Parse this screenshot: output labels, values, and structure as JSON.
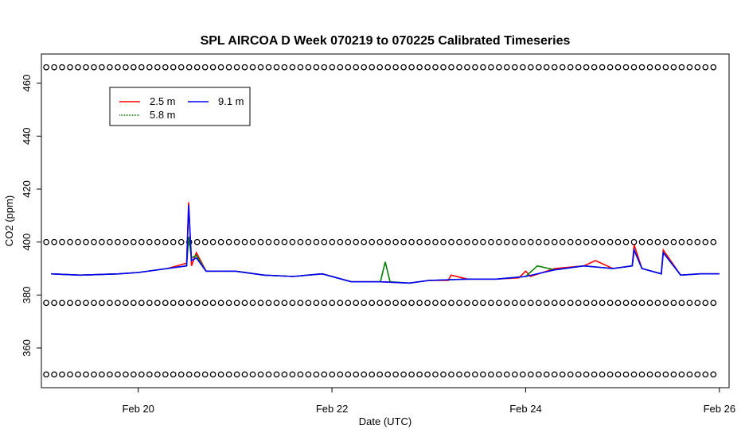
{
  "chart_data": {
    "type": "line",
    "title": "SPL AIRCOA D  Week 070219 to 070225  Calibrated Timeseries",
    "xlabel": "Date (UTC)",
    "ylabel": "CO2 (ppm)",
    "x_ticks": [
      "Feb 20",
      "Feb 22",
      "Feb 24",
      "Feb 26"
    ],
    "y_ticks": [
      360,
      380,
      400,
      420,
      440,
      460
    ],
    "xlim_days": [
      19.0,
      26.1
    ],
    "ylim": [
      345,
      471
    ],
    "grid": false,
    "legend_position": "top-left",
    "series": [
      {
        "name": "2.5 m",
        "color": "#ff0000",
        "x_day": [
          19.1,
          19.4,
          19.8,
          20.0,
          20.3,
          20.5,
          20.52,
          20.55,
          20.6,
          20.7,
          21.0,
          21.3,
          21.6,
          21.9,
          22.2,
          22.5,
          22.8,
          23.0,
          23.2,
          23.23,
          23.4,
          23.7,
          23.93,
          24.0,
          24.05,
          24.3,
          24.6,
          24.72,
          24.9,
          25.1,
          25.12,
          25.2,
          25.4,
          25.42,
          25.6,
          25.8,
          26.0
        ],
        "values": [
          388,
          387.5,
          388,
          388.5,
          390,
          392,
          415,
          391,
          396,
          389,
          389,
          387.5,
          387,
          388,
          385,
          385,
          384.5,
          385.5,
          385.5,
          387.5,
          386,
          386,
          386.5,
          389,
          387,
          390,
          391,
          393,
          390,
          391,
          399,
          390,
          388,
          397,
          387.5,
          388,
          388
        ]
      },
      {
        "name": "5.8 m",
        "color": "#008000",
        "x_day": [
          19.1,
          19.4,
          19.8,
          20.0,
          20.3,
          20.5,
          20.52,
          20.55,
          20.6,
          20.7,
          21.0,
          21.3,
          21.6,
          21.9,
          22.2,
          22.5,
          22.55,
          22.6,
          22.8,
          23.0,
          23.4,
          23.7,
          24.0,
          24.12,
          24.3,
          24.6,
          24.9,
          25.1,
          25.12,
          25.2,
          25.4,
          25.42,
          25.6,
          25.8,
          26.0
        ],
        "values": [
          388,
          387.5,
          388,
          388.5,
          390,
          391,
          402,
          394,
          395,
          389,
          389,
          387.5,
          387,
          388,
          385,
          385,
          392.5,
          385,
          384.5,
          385.5,
          386,
          386,
          387,
          391,
          389.5,
          391,
          390,
          391,
          397,
          390,
          388,
          396,
          387.5,
          388,
          388
        ]
      },
      {
        "name": "9.1 m",
        "color": "#0000ff",
        "x_day": [
          19.1,
          19.4,
          19.8,
          20.0,
          20.3,
          20.5,
          20.52,
          20.55,
          20.6,
          20.7,
          21.0,
          21.3,
          21.6,
          21.9,
          22.2,
          22.5,
          22.8,
          23.0,
          23.4,
          23.7,
          24.0,
          24.3,
          24.6,
          24.9,
          25.1,
          25.12,
          25.2,
          25.4,
          25.42,
          25.6,
          25.8,
          26.0
        ],
        "values": [
          388,
          387.5,
          388,
          388.5,
          390,
          391,
          414,
          393,
          394,
          389,
          389,
          387.5,
          387,
          388,
          385,
          385,
          384.5,
          385.5,
          386,
          386,
          387,
          389.5,
          391,
          390,
          391,
          397,
          390,
          388,
          396,
          387.5,
          388,
          388
        ]
      }
    ],
    "reference_levels": [
      466,
      400,
      377,
      350
    ]
  }
}
